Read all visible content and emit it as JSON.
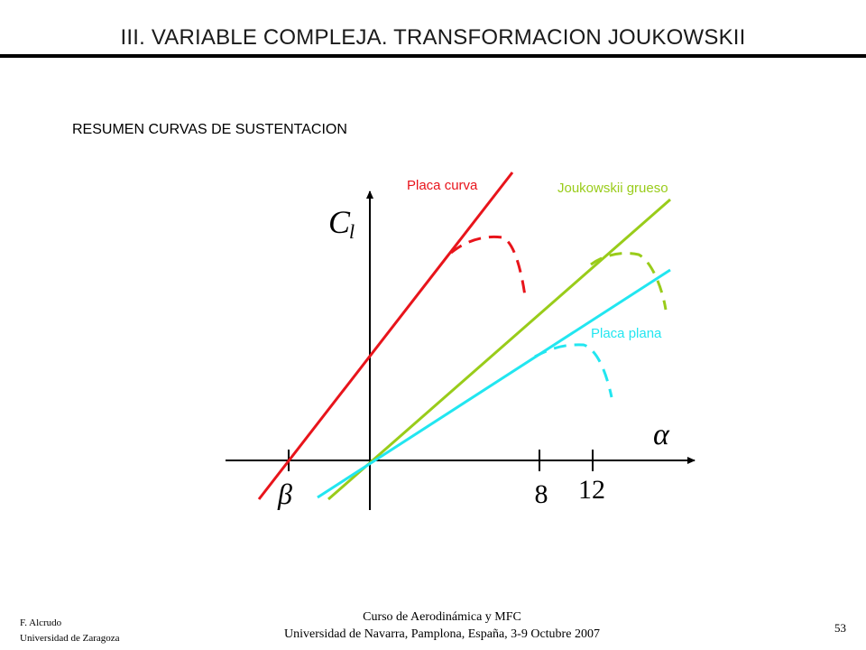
{
  "header": {
    "title": "III. VARIABLE COMPLEJA. TRANSFORMACION JOUKOWSKII",
    "subtitle": "RESUMEN CURVAS DE SUSTENTACION"
  },
  "diagram": {
    "y_axis_symbol": "C",
    "y_axis_subscript": "l",
    "x_axis_symbol": "α",
    "zero_offset_symbol": "β",
    "tick_labels": [
      "8",
      "12"
    ],
    "curves": [
      {
        "label": "Placa curva",
        "color": "#e8141b"
      },
      {
        "label": "Joukowskii grueso",
        "color": "#99cc1a"
      },
      {
        "label": "Placa plana",
        "color": "#22e6f0"
      }
    ]
  },
  "footer": {
    "author": "F. Alcrudo",
    "institution": "Universidad de Zaragoza",
    "course": "Curso de Aerodinámica y MFC",
    "venue": "Universidad de Navarra, Pamplona, España, 3-9 Octubre 2007",
    "page": "53"
  }
}
